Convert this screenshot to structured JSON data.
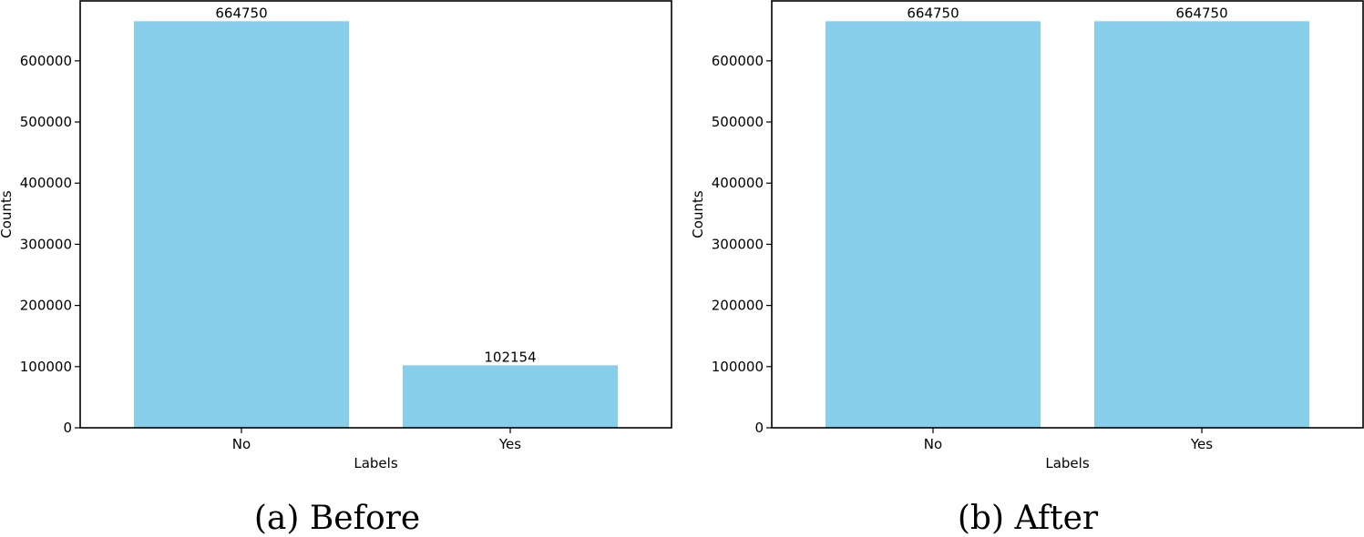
{
  "chart_data": [
    {
      "type": "bar",
      "categories": [
        "No",
        "Yes"
      ],
      "values": [
        664750,
        102154
      ],
      "value_labels": [
        "664750",
        "102154"
      ],
      "xlabel": "Labels",
      "ylabel": "Counts",
      "ylim": [
        0,
        697987
      ],
      "yticks": [
        0,
        100000,
        200000,
        300000,
        400000,
        500000,
        600000
      ],
      "ytick_labels": [
        "0",
        "100000",
        "200000",
        "300000",
        "400000",
        "500000",
        "600000"
      ],
      "bar_color": "#87ceeb",
      "grid": false,
      "caption": "(a) Before"
    },
    {
      "type": "bar",
      "categories": [
        "No",
        "Yes"
      ],
      "values": [
        664750,
        664750
      ],
      "value_labels": [
        "664750",
        "664750"
      ],
      "xlabel": "Labels",
      "ylabel": "Counts",
      "ylim": [
        0,
        697987
      ],
      "yticks": [
        0,
        100000,
        200000,
        300000,
        400000,
        500000,
        600000
      ],
      "ytick_labels": [
        "0",
        "100000",
        "200000",
        "300000",
        "400000",
        "500000",
        "600000"
      ],
      "bar_color": "#87ceeb",
      "grid": false,
      "caption": "(b) After"
    }
  ]
}
